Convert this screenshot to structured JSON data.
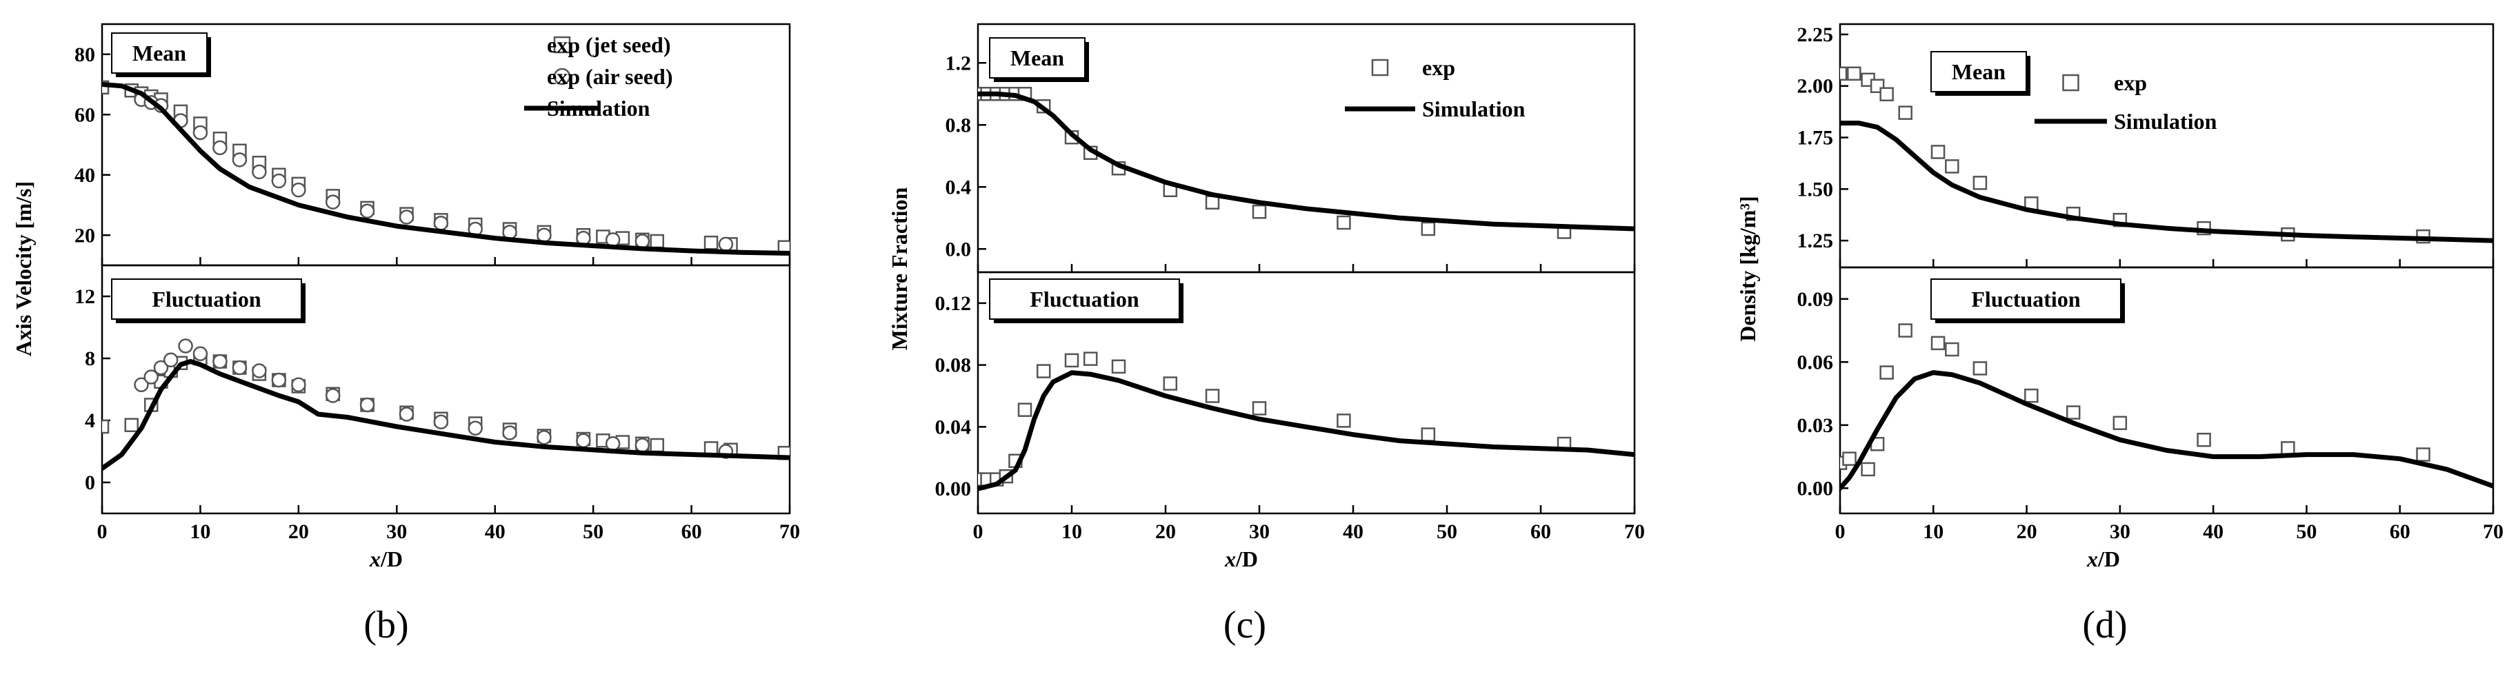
{
  "panel_labels": [
    "(b)",
    "(c)",
    "(d)"
  ],
  "chart_data": [
    {
      "type": "scatter",
      "panel": "(b)",
      "xlabel": "x/D",
      "x_ticks": [
        "0",
        "10",
        "20",
        "30",
        "40",
        "50",
        "60",
        "70"
      ],
      "xlim": [
        0,
        70
      ],
      "subplots": [
        {
          "name": "Mean",
          "box_label": "Mean",
          "ylim": [
            10,
            90
          ],
          "y_ticks": [
            20,
            40,
            60,
            80
          ],
          "y_tick_labels": [
            "20",
            "40",
            "60",
            "80"
          ],
          "legend": [
            {
              "label": "exp (jet seed)",
              "marker": "square"
            },
            {
              "label": "exp (air seed)",
              "marker": "circle"
            },
            {
              "label": "Simulation",
              "marker": "line"
            }
          ],
          "series": [
            {
              "name": "exp (jet seed)",
              "marker": "square",
              "x": [
                0,
                3,
                4,
                5,
                6,
                8,
                10,
                12,
                14,
                16,
                18,
                20,
                23.5,
                27,
                31,
                34.5,
                38,
                41.5,
                45,
                49,
                51,
                53,
                55,
                56.5,
                62,
                64,
                69.5
              ],
              "y": [
                69,
                68,
                67,
                66,
                65,
                61,
                57,
                52,
                48,
                44,
                40,
                37,
                33,
                29,
                27,
                25,
                23.5,
                22,
                21,
                20,
                19.5,
                19,
                18.5,
                18,
                17.5,
                17,
                16
              ]
            },
            {
              "name": "exp (air seed)",
              "marker": "circle",
              "x": [
                4,
                5,
                6,
                8,
                10,
                12,
                14,
                16,
                18,
                20,
                23.5,
                27,
                31,
                34.5,
                38,
                41.5,
                45,
                49,
                52,
                55,
                63.5
              ],
              "y": [
                65,
                64,
                63,
                58,
                54,
                49,
                45,
                41,
                38,
                35,
                31,
                28,
                26,
                24,
                22,
                21,
                20,
                19,
                18.5,
                18,
                17
              ]
            },
            {
              "name": "Simulation",
              "marker": "line",
              "x": [
                0,
                2,
                4,
                6,
                8,
                10,
                12,
                15,
                20,
                25,
                30,
                35,
                40,
                45,
                50,
                55,
                60,
                65,
                70
              ],
              "y": [
                70,
                69.5,
                67,
                62,
                55,
                48,
                42,
                36,
                30,
                26,
                23,
                21,
                19,
                17.5,
                16.5,
                15.5,
                14.8,
                14.3,
                14
              ]
            }
          ]
        },
        {
          "name": "Fluctuation",
          "box_label": "Fluctuation",
          "ylim": [
            -2,
            14
          ],
          "y_ticks": [
            0,
            4,
            8,
            12
          ],
          "y_tick_labels": [
            "0",
            "4",
            "8",
            "12"
          ],
          "series": [
            {
              "name": "exp (jet seed)",
              "marker": "square",
              "x": [
                0,
                3,
                5,
                6,
                7,
                8,
                10,
                12,
                14,
                16,
                18,
                20,
                23.5,
                27,
                31,
                34.5,
                38,
                41.5,
                45,
                49,
                51,
                53,
                55,
                56.5,
                62,
                64,
                69.5
              ],
              "y": [
                3.6,
                3.7,
                5,
                6.5,
                7.2,
                7.7,
                8.0,
                7.8,
                7.4,
                7.0,
                6.6,
                6.2,
                5.7,
                5.0,
                4.5,
                4.1,
                3.8,
                3.4,
                3.0,
                2.8,
                2.7,
                2.6,
                2.5,
                2.4,
                2.2,
                2.1,
                1.9
              ]
            },
            {
              "name": "exp (air seed)",
              "marker": "circle",
              "x": [
                4,
                5,
                6,
                7,
                8.5,
                10,
                12,
                14,
                16,
                18,
                20,
                23.5,
                27,
                31,
                34.5,
                38,
                41.5,
                45,
                49,
                52,
                55,
                63.5
              ],
              "y": [
                6.3,
                6.8,
                7.4,
                7.9,
                8.8,
                8.3,
                7.8,
                7.4,
                7.2,
                6.6,
                6.3,
                5.6,
                5.0,
                4.4,
                3.9,
                3.5,
                3.2,
                2.9,
                2.7,
                2.5,
                2.4,
                2.0
              ]
            },
            {
              "name": "Simulation",
              "marker": "line",
              "x": [
                0,
                2,
                4,
                6,
                8,
                9,
                10,
                12,
                15,
                18,
                20,
                22,
                25,
                30,
                35,
                40,
                45,
                50,
                55,
                60,
                65,
                70
              ],
              "y": [
                0.9,
                1.8,
                3.5,
                6.0,
                7.6,
                7.8,
                7.6,
                7.0,
                6.3,
                5.6,
                5.2,
                4.4,
                4.2,
                3.6,
                3.1,
                2.6,
                2.3,
                2.1,
                1.9,
                1.8,
                1.7,
                1.6
              ]
            }
          ]
        }
      ]
    },
    {
      "type": "scatter",
      "panel": "(c)",
      "xlabel": "x/D",
      "x_ticks": [
        "0",
        "10",
        "20",
        "30",
        "40",
        "50",
        "60",
        "70"
      ],
      "xlim": [
        0,
        70
      ],
      "subplots": [
        {
          "name": "Mean",
          "box_label": "Mean",
          "ylim": [
            -0.15,
            1.45
          ],
          "y_ticks": [
            0.0,
            0.4,
            0.8,
            1.2
          ],
          "y_tick_labels": [
            "0.0",
            "0.4",
            "0.8",
            "1.2"
          ],
          "legend": [
            {
              "label": "exp",
              "marker": "square"
            },
            {
              "label": "Simulation",
              "marker": "line"
            }
          ],
          "series": [
            {
              "name": "exp",
              "marker": "square",
              "x": [
                0,
                1,
                2,
                3,
                4,
                5,
                7,
                10,
                12,
                15,
                20.5,
                25,
                30,
                39,
                48,
                62.5
              ],
              "y": [
                1.0,
                1.0,
                1.0,
                1.0,
                1.0,
                1.0,
                0.92,
                0.72,
                0.62,
                0.52,
                0.38,
                0.3,
                0.24,
                0.17,
                0.13,
                0.11
              ]
            },
            {
              "name": "Simulation",
              "marker": "line",
              "x": [
                0,
                2,
                4,
                6,
                8,
                10,
                12,
                15,
                20,
                25,
                30,
                35,
                40,
                45,
                50,
                55,
                60,
                65,
                70
              ],
              "y": [
                1.0,
                1.0,
                0.99,
                0.95,
                0.86,
                0.74,
                0.64,
                0.54,
                0.43,
                0.35,
                0.3,
                0.26,
                0.23,
                0.2,
                0.18,
                0.16,
                0.15,
                0.14,
                0.13
              ]
            }
          ]
        },
        {
          "name": "Fluctuation",
          "box_label": "Fluctuation",
          "ylim": [
            -0.016,
            0.14
          ],
          "y_ticks": [
            0.0,
            0.04,
            0.08,
            0.12
          ],
          "y_tick_labels": [
            "0.00",
            "0.04",
            "0.08",
            "0.12"
          ],
          "series": [
            {
              "name": "exp",
              "marker": "square",
              "x": [
                0,
                1,
                2,
                3,
                4,
                5,
                7,
                10,
                12,
                15,
                20.5,
                25,
                30,
                39,
                48,
                62.5
              ],
              "y": [
                0.006,
                0.006,
                0.006,
                0.008,
                0.018,
                0.051,
                0.076,
                0.083,
                0.084,
                0.079,
                0.068,
                0.06,
                0.052,
                0.044,
                0.035,
                0.029
              ]
            },
            {
              "name": "Simulation",
              "marker": "line",
              "x": [
                0,
                2,
                4,
                5,
                6,
                7,
                8,
                10,
                12,
                15,
                20,
                25,
                30,
                35,
                40,
                45,
                50,
                55,
                60,
                65,
                70
              ],
              "y": [
                0.0,
                0.003,
                0.012,
                0.025,
                0.045,
                0.06,
                0.069,
                0.075,
                0.074,
                0.07,
                0.06,
                0.052,
                0.045,
                0.04,
                0.035,
                0.031,
                0.029,
                0.027,
                0.026,
                0.025,
                0.022
              ]
            }
          ]
        }
      ]
    },
    {
      "type": "scatter",
      "panel": "(d)",
      "xlabel": "x/D",
      "x_ticks": [
        "0",
        "10",
        "20",
        "30",
        "40",
        "50",
        "60",
        "70"
      ],
      "xlim": [
        0,
        70
      ],
      "subplots": [
        {
          "name": "Mean",
          "box_label": "Mean",
          "ylim": [
            1.12,
            2.3
          ],
          "y_ticks": [
            1.25,
            1.5,
            1.75,
            2.0,
            2.25
          ],
          "y_tick_labels": [
            "1.25",
            "1.50",
            "1.75",
            "2.00",
            "2.25"
          ],
          "legend": [
            {
              "label": "exp",
              "marker": "square"
            },
            {
              "label": "Simulation",
              "marker": "line"
            }
          ],
          "series": [
            {
              "name": "exp",
              "marker": "square",
              "x": [
                0,
                1.5,
                3,
                4,
                5,
                7,
                10.5,
                12,
                15,
                20.5,
                25,
                30,
                39,
                48,
                62.5
              ],
              "y": [
                2.06,
                2.06,
                2.03,
                2.0,
                1.96,
                1.87,
                1.68,
                1.61,
                1.53,
                1.43,
                1.38,
                1.35,
                1.31,
                1.28,
                1.27
              ]
            },
            {
              "name": "Simulation",
              "marker": "line",
              "x": [
                0,
                2,
                4,
                6,
                8,
                10,
                12,
                15,
                20,
                25,
                30,
                35,
                40,
                45,
                50,
                55,
                60,
                65,
                70
              ],
              "y": [
                1.82,
                1.82,
                1.8,
                1.74,
                1.66,
                1.58,
                1.52,
                1.46,
                1.4,
                1.36,
                1.33,
                1.31,
                1.295,
                1.285,
                1.275,
                1.268,
                1.262,
                1.256,
                1.25
              ]
            }
          ]
        },
        {
          "name": "Fluctuation",
          "box_label": "Fluctuation",
          "ylim": [
            -0.012,
            0.105
          ],
          "y_ticks": [
            0.0,
            0.03,
            0.06,
            0.09
          ],
          "y_tick_labels": [
            "0.00",
            "0.03",
            "0.06",
            "0.09"
          ],
          "series": [
            {
              "name": "exp",
              "marker": "square",
              "x": [
                0,
                1,
                3,
                4,
                5,
                7,
                10.5,
                12,
                15,
                20.5,
                25,
                30,
                39,
                48,
                62.5
              ],
              "y": [
                0.012,
                0.014,
                0.009,
                0.021,
                0.055,
                0.075,
                0.069,
                0.066,
                0.057,
                0.044,
                0.036,
                0.031,
                0.023,
                0.019,
                0.016
              ]
            },
            {
              "name": "Simulation",
              "marker": "line",
              "x": [
                0,
                1,
                2,
                4,
                6,
                8,
                10,
                12,
                15,
                20,
                25,
                30,
                35,
                40,
                45,
                50,
                55,
                60,
                65,
                70
              ],
              "y": [
                0.0,
                0.005,
                0.012,
                0.028,
                0.043,
                0.052,
                0.055,
                0.054,
                0.05,
                0.04,
                0.031,
                0.023,
                0.018,
                0.015,
                0.015,
                0.016,
                0.016,
                0.014,
                0.009,
                0.001
              ]
            }
          ]
        }
      ]
    }
  ]
}
